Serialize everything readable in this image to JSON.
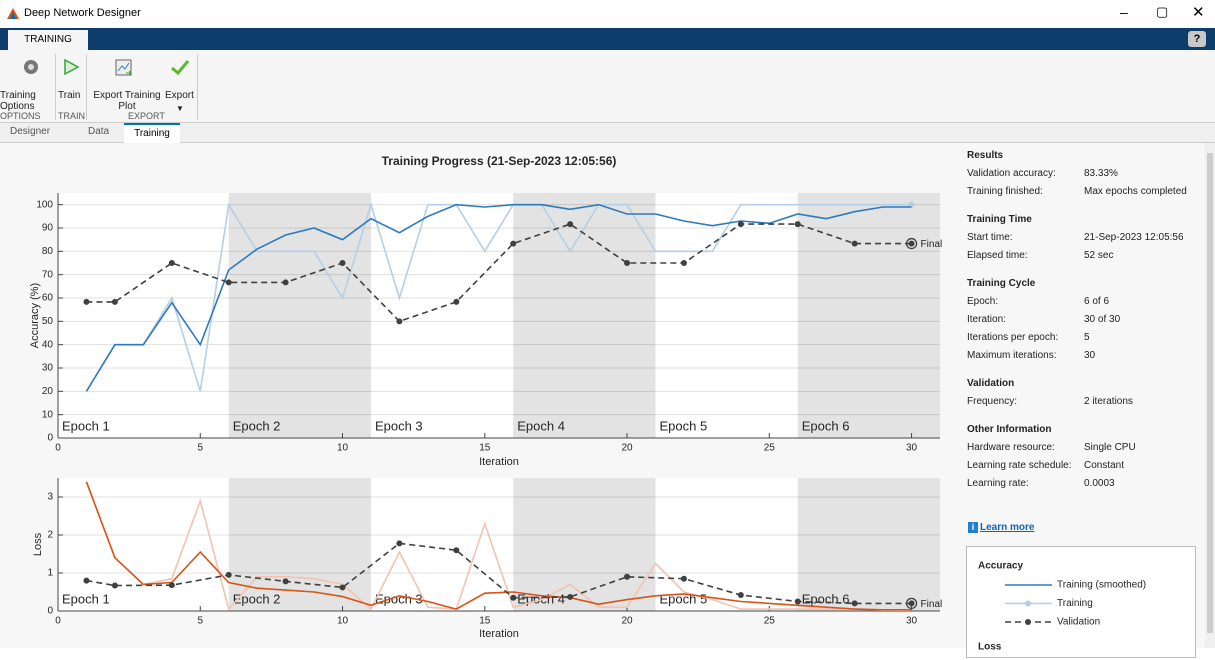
{
  "window": {
    "title": "Deep Network Designer"
  },
  "ribbon": {
    "tab": "TRAINING",
    "buttons": [
      "Training Options",
      "Train",
      "Export Training Plot",
      "Export"
    ],
    "sections": [
      "OPTIONS",
      "TRAIN",
      "EXPORT"
    ]
  },
  "doc_tabs": [
    "Designer",
    "Data",
    "Training"
  ],
  "results": [
    {
      "heading": "Results",
      "rows": [
        [
          "Validation accuracy:",
          "83.33%"
        ],
        [
          "Training finished:",
          "Max epochs completed"
        ]
      ]
    },
    {
      "heading": "Training Time",
      "rows": [
        [
          "Start time:",
          "21-Sep-2023 12:05:56"
        ],
        [
          "Elapsed time:",
          "52 sec"
        ]
      ]
    },
    {
      "heading": "Training Cycle",
      "rows": [
        [
          "Epoch:",
          "6 of 6"
        ],
        [
          "Iteration:",
          "30 of 30"
        ],
        [
          "Iterations per epoch:",
          "5"
        ],
        [
          "Maximum iterations:",
          "30"
        ]
      ]
    },
    {
      "heading": "Validation",
      "rows": [
        [
          "Frequency:",
          "2 iterations"
        ]
      ]
    },
    {
      "heading": "Other Information",
      "rows": [
        [
          "Hardware resource:",
          "Single CPU"
        ],
        [
          "Learning rate schedule:",
          "Constant"
        ],
        [
          "Learning rate:",
          "0.0003"
        ]
      ]
    }
  ],
  "learn_more": "Learn more",
  "chart_data": [
    {
      "type": "line",
      "title": "Training Progress (21-Sep-2023 12:05:56)",
      "x_label": "Iteration",
      "y_label": "Accuracy (%)",
      "legend_title": "Accuracy",
      "annotation": "Final",
      "xlim": [
        0,
        31
      ],
      "ylim": [
        0,
        105
      ],
      "xticks": [
        0,
        5,
        10,
        15,
        20,
        25,
        30
      ],
      "yticks": [
        0,
        10,
        20,
        30,
        40,
        50,
        60,
        70,
        80,
        90,
        100
      ],
      "grid": true,
      "epochs": [
        {
          "label": "Epoch 1",
          "start": 0,
          "end": 6
        },
        {
          "label": "Epoch 2",
          "start": 6,
          "end": 11
        },
        {
          "label": "Epoch 3",
          "start": 11,
          "end": 16
        },
        {
          "label": "Epoch 4",
          "start": 16,
          "end": 21
        },
        {
          "label": "Epoch 5",
          "start": 21,
          "end": 26
        },
        {
          "label": "Epoch 6",
          "start": 26,
          "end": 31
        }
      ],
      "x": [
        1,
        2,
        3,
        4,
        5,
        6,
        7,
        8,
        9,
        10,
        11,
        12,
        13,
        14,
        15,
        16,
        17,
        18,
        19,
        20,
        21,
        22,
        23,
        24,
        25,
        26,
        27,
        28,
        29,
        30
      ],
      "series": [
        {
          "name": "Training (smoothed)",
          "color": "#2b7bc0",
          "values": [
            20,
            40,
            40,
            58,
            40,
            72,
            81,
            87,
            90,
            85,
            94,
            88,
            95,
            100,
            99,
            100,
            100,
            98,
            100,
            96,
            96,
            93,
            91,
            93,
            92,
            96,
            94,
            97,
            99,
            99
          ]
        },
        {
          "name": "Training",
          "color": "#b4cfe6",
          "marker": "last",
          "values": [
            20,
            40,
            40,
            60,
            20,
            100,
            80,
            80,
            80,
            60,
            100,
            60,
            100,
            100,
            80,
            100,
            100,
            80,
            100,
            100,
            80,
            80,
            80,
            100,
            100,
            100,
            100,
            100,
            100,
            100
          ]
        },
        {
          "name": "Validation",
          "color": "#404040",
          "dashed": true,
          "marker": "all",
          "x": [
            1,
            2,
            4,
            6,
            8,
            10,
            12,
            14,
            16,
            18,
            20,
            22,
            24,
            26,
            28,
            30
          ],
          "values": [
            58.33,
            58.33,
            75,
            66.67,
            66.67,
            75,
            50,
            58.33,
            83.33,
            91.67,
            75,
            75,
            91.67,
            91.67,
            83.33,
            83.33
          ]
        }
      ]
    },
    {
      "type": "line",
      "x_label": "Iteration",
      "y_label": "Loss",
      "legend_title": "Loss",
      "annotation": "Final",
      "xlim": [
        0,
        31
      ],
      "ylim": [
        0,
        3.5
      ],
      "xticks": [
        0,
        5,
        10,
        15,
        20,
        25,
        30
      ],
      "yticks": [
        0,
        1,
        2,
        3
      ],
      "grid": true,
      "epochs": [
        {
          "label": "Epoch 1",
          "start": 0,
          "end": 6
        },
        {
          "label": "Epoch 2",
          "start": 6,
          "end": 11
        },
        {
          "label": "Epoch 3",
          "start": 11,
          "end": 16
        },
        {
          "label": "Epoch 4",
          "start": 16,
          "end": 21
        },
        {
          "label": "Epoch 5",
          "start": 21,
          "end": 26
        },
        {
          "label": "Epoch 6",
          "start": 26,
          "end": 31
        }
      ],
      "x": [
        1,
        2,
        3,
        4,
        5,
        6,
        7,
        8,
        9,
        10,
        11,
        12,
        13,
        14,
        15,
        16,
        17,
        18,
        19,
        20,
        21,
        22,
        23,
        24,
        25,
        26,
        27,
        28,
        29,
        30
      ],
      "series": [
        {
          "name": "Training (smoothed)",
          "color": "#d95319",
          "values": [
            3.4,
            1.4,
            0.7,
            0.75,
            1.55,
            0.75,
            0.6,
            0.55,
            0.5,
            0.38,
            0.15,
            0.4,
            0.25,
            0.05,
            0.47,
            0.5,
            0.4,
            0.35,
            0.18,
            0.3,
            0.4,
            0.45,
            0.35,
            0.25,
            0.2,
            0.15,
            0.1,
            0.05,
            0.03,
            0.03
          ]
        },
        {
          "name": "Training",
          "color": "#f2c3ae",
          "values": [
            3.4,
            1.4,
            0.7,
            0.85,
            2.9,
            0.05,
            0.9,
            0.9,
            0.85,
            0.7,
            0.05,
            1.55,
            0.1,
            0.05,
            2.3,
            0.1,
            0.3,
            0.7,
            0.1,
            0.1,
            1.25,
            0.5,
            0.3,
            0.05,
            0.05,
            0.05,
            0.05,
            0.05,
            0.02,
            0.02
          ]
        },
        {
          "name": "Validation",
          "color": "#404040",
          "dashed": true,
          "marker": "all",
          "x": [
            1,
            2,
            4,
            6,
            8,
            10,
            12,
            14,
            16,
            18,
            20,
            22,
            24,
            26,
            28,
            30
          ],
          "values": [
            0.8,
            0.67,
            0.68,
            0.95,
            0.78,
            0.62,
            1.78,
            1.6,
            0.35,
            0.37,
            0.9,
            0.85,
            0.42,
            0.25,
            0.2,
            0.2
          ]
        }
      ]
    }
  ]
}
